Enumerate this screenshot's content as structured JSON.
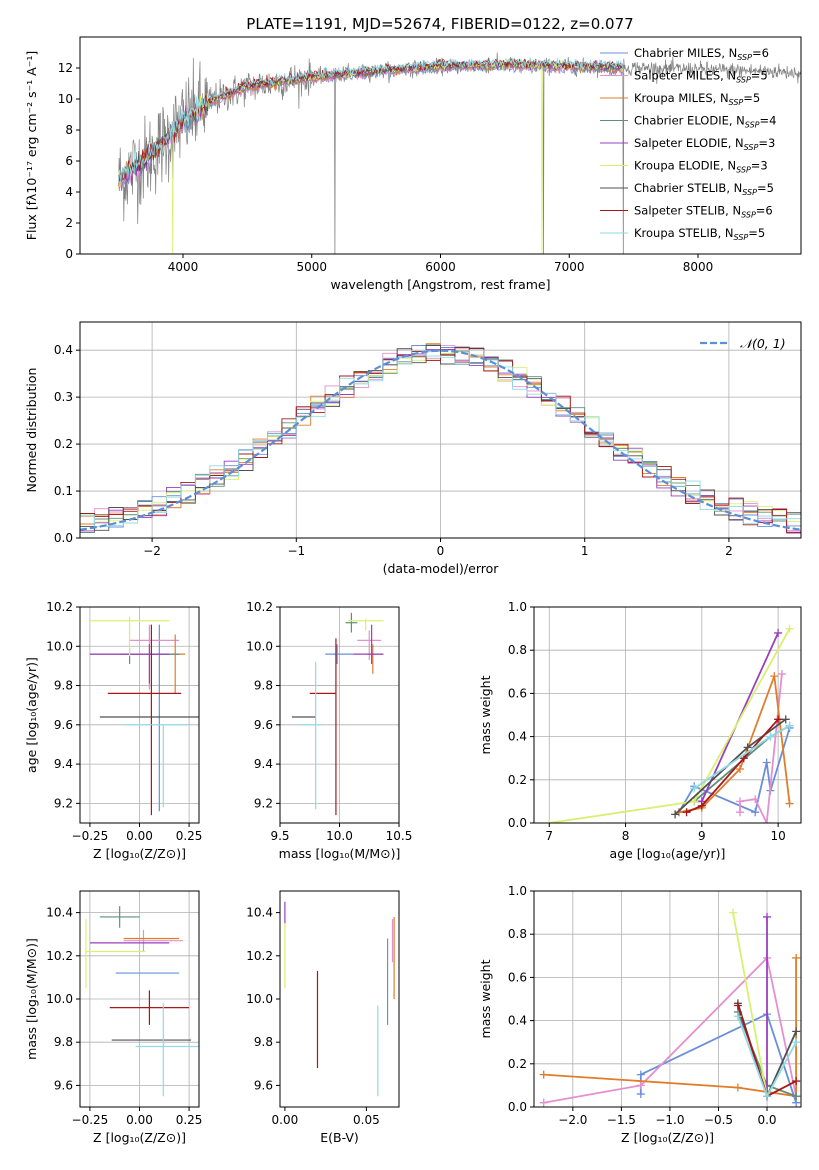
{
  "title": "PLATE=1191, MJD=52674, FIBERID=0122, z=0.077",
  "colors": {
    "chabrier_miles": "#6a8fd8",
    "salpeter_miles": "#e48fd0",
    "kroupa_miles": "#e07d2a",
    "chabrier_elodie": "#5f8f7a",
    "salpeter_elodie": "#9a3fbf",
    "kroupa_elodie": "#d8f070",
    "chabrier_stelib": "#505050",
    "salpeter_stelib": "#a81818",
    "kroupa_stelib": "#8fdae6",
    "data": "#808080",
    "normal": "#5b8fd8"
  },
  "legend": [
    {
      "key": "chabrier_miles",
      "label": "Chabrier MILES, N",
      "sub": "SSP",
      "tail": "=6"
    },
    {
      "key": "salpeter_miles",
      "label": "Salpeter MILES, N",
      "sub": "SSP",
      "tail": "=5"
    },
    {
      "key": "kroupa_miles",
      "label": "Kroupa MILES, N",
      "sub": "SSP",
      "tail": "=5"
    },
    {
      "key": "chabrier_elodie",
      "label": "Chabrier ELODIE, N",
      "sub": "SSP",
      "tail": "=4"
    },
    {
      "key": "salpeter_elodie",
      "label": "Salpeter ELODIE, N",
      "sub": "SSP",
      "tail": "=3"
    },
    {
      "key": "kroupa_elodie",
      "label": "Kroupa ELODIE, N",
      "sub": "SSP",
      "tail": "=3"
    },
    {
      "key": "chabrier_stelib",
      "label": "Chabrier STELIB, N",
      "sub": "SSP",
      "tail": "=5"
    },
    {
      "key": "salpeter_stelib",
      "label": "Salpeter STELIB, N",
      "sub": "SSP",
      "tail": "=6"
    },
    {
      "key": "kroupa_stelib",
      "label": "Kroupa STELIB, N",
      "sub": "SSP",
      "tail": "=5"
    }
  ],
  "chart_data": [
    {
      "id": "spectrum",
      "type": "line",
      "xlabel": "wavelength [Angstrom, rest frame]",
      "ylabel": "Flux [fλ10⁻¹⁷ erg cm⁻² s⁻¹ A⁻¹]",
      "xlim": [
        3200,
        8800
      ],
      "ylim": [
        0,
        14
      ],
      "xticks": [
        4000,
        5000,
        6000,
        7000,
        8000
      ],
      "yticks": [
        0,
        2,
        4,
        6,
        8,
        10,
        12
      ],
      "data_range": [
        3500,
        8800
      ],
      "model_range": [
        3500,
        7420
      ],
      "continuum": [
        [
          3500,
          4.8
        ],
        [
          3700,
          6.0
        ],
        [
          3900,
          7.6
        ],
        [
          4000,
          8.6
        ],
        [
          4200,
          9.8
        ],
        [
          4500,
          10.8
        ],
        [
          5000,
          11.4
        ],
        [
          5500,
          11.8
        ],
        [
          6000,
          12.1
        ],
        [
          6500,
          12.2
        ],
        [
          7000,
          12.1
        ],
        [
          7500,
          12.0
        ],
        [
          8000,
          11.9
        ],
        [
          8500,
          11.8
        ],
        [
          8800,
          11.7
        ]
      ],
      "grid": false
    },
    {
      "id": "residuals",
      "type": "histogram",
      "xlabel": "(data-model)/error",
      "ylabel": "Normed distribution",
      "xlim": [
        -2.5,
        2.5
      ],
      "ylim": [
        0,
        0.46
      ],
      "xticks": [
        -2,
        -1,
        0,
        1,
        2
      ],
      "yticks": [
        0.0,
        0.1,
        0.2,
        0.3,
        0.4
      ],
      "bin_width": 0.1,
      "legend_label": "𝒩(0, 1)",
      "grid": true
    },
    {
      "id": "age_vs_Z",
      "type": "errorbar",
      "xlabel": "Z [log₁₀(Z/Z⊙)]",
      "ylabel": "age  [log₁₀(age/yr)]",
      "xlim": [
        -0.3,
        0.3
      ],
      "ylim": [
        9.1,
        10.2
      ],
      "xticks": [
        -0.25,
        0.0,
        0.25
      ],
      "yticks": [
        9.2,
        9.4,
        9.6,
        9.8,
        10.0,
        10.2
      ],
      "points": [
        {
          "key": "chabrier_miles",
          "x": 0.1,
          "xerr": [
            0.2,
            0.1
          ],
          "y": 9.96,
          "yerr": [
            0.8,
            0.15
          ]
        },
        {
          "key": "salpeter_miles",
          "x": 0.05,
          "xerr": [
            0.1,
            0.15
          ],
          "y": 10.03,
          "yerr": [
            0.25,
            0.08
          ]
        },
        {
          "key": "kroupa_miles",
          "x": 0.18,
          "xerr": [
            0.28,
            0.05
          ],
          "y": 9.96,
          "yerr": [
            0.2,
            0.1
          ]
        },
        {
          "key": "chabrier_elodie",
          "x": -0.05,
          "xerr": [
            0.2,
            0.25
          ],
          "y": 9.96,
          "yerr": [
            0.05,
            0.03
          ]
        },
        {
          "key": "salpeter_elodie",
          "x": 0.05,
          "xerr": [
            0.3,
            0.1
          ],
          "y": 9.96,
          "yerr": [
            0.15,
            0.05
          ]
        },
        {
          "key": "kroupa_elodie",
          "x": -0.05,
          "xerr": [
            0.2,
            0.2
          ],
          "y": 10.13,
          "yerr": [
            0.18,
            0.02
          ]
        },
        {
          "key": "chabrier_stelib",
          "x": 0.0,
          "xerr": [
            0.2,
            0.3
          ],
          "y": 9.64,
          "yerr": [
            0.0,
            0.0
          ]
        },
        {
          "key": "salpeter_stelib",
          "x": 0.06,
          "xerr": [
            0.22,
            0.15
          ],
          "y": 9.76,
          "yerr": [
            0.62,
            0.35
          ]
        },
        {
          "key": "kroupa_stelib",
          "x": 0.12,
          "xerr": [
            0.2,
            0.12
          ],
          "y": 9.6,
          "yerr": [
            0.42,
            0.0
          ]
        }
      ],
      "grid": true
    },
    {
      "id": "age_vs_mass",
      "type": "errorbar",
      "xlabel": "mass [log₁₀(M/M⊙)]",
      "ylabel": "",
      "xlim": [
        9.5,
        10.5
      ],
      "ylim": [
        9.1,
        10.2
      ],
      "xticks": [
        9.5,
        10.0,
        10.5
      ],
      "yticks": [
        9.2,
        9.4,
        9.6,
        9.8,
        10.0,
        10.2
      ],
      "points": [
        {
          "key": "chabrier_miles",
          "x": 9.98,
          "xerr": [
            0.1,
            0.15
          ],
          "y": 9.96,
          "yerr": [
            0.05,
            0.05
          ]
        },
        {
          "key": "salpeter_miles",
          "x": 10.25,
          "xerr": [
            0.1,
            0.1
          ],
          "y": 10.03,
          "yerr": [
            0.1,
            0.05
          ]
        },
        {
          "key": "kroupa_miles",
          "x": 10.28,
          "xerr": [
            0.05,
            0.08
          ],
          "y": 9.96,
          "yerr": [
            0.1,
            0.05
          ]
        },
        {
          "key": "chabrier_elodie",
          "x": 10.1,
          "xerr": [
            0.05,
            0.05
          ],
          "y": 10.12,
          "yerr": [
            0.05,
            0.05
          ]
        },
        {
          "key": "salpeter_elodie",
          "x": 10.27,
          "xerr": [
            0.15,
            0.1
          ],
          "y": 9.96,
          "yerr": [
            0.05,
            0.15
          ]
        },
        {
          "key": "kroupa_elodie",
          "x": 10.22,
          "xerr": [
            0.15,
            0.15
          ],
          "y": 10.13,
          "yerr": [
            0.05,
            0.01
          ]
        },
        {
          "key": "chabrier_stelib",
          "x": 9.8,
          "xerr": [
            0.2,
            0.0
          ],
          "y": 9.64,
          "yerr": [
            0.0,
            0.0
          ]
        },
        {
          "key": "salpeter_stelib",
          "x": 9.97,
          "xerr": [
            0.22,
            0.0
          ],
          "y": 9.76,
          "yerr": [
            0.62,
            0.28
          ]
        },
        {
          "key": "kroupa_stelib",
          "x": 9.8,
          "xerr": [
            0.15,
            0.05
          ],
          "y": 9.6,
          "yerr": [
            0.43,
            0.32
          ]
        }
      ],
      "grid": true
    },
    {
      "id": "mass_weight_vs_age",
      "type": "line",
      "xlabel": "age  [log₁₀(age/yr)]",
      "ylabel": "mass weight",
      "xlim": [
        6.8,
        10.3
      ],
      "ylim": [
        0,
        1.0
      ],
      "xticks": [
        7,
        8,
        9,
        10
      ],
      "yticks": [
        0.0,
        0.2,
        0.4,
        0.6,
        0.8,
        1.0
      ],
      "series": [
        {
          "key": "chabrier_miles",
          "points": [
            [
              8.7,
              0.05
            ],
            [
              8.9,
              0.17
            ],
            [
              9.7,
              0.05
            ],
            [
              9.85,
              0.28
            ],
            [
              9.9,
              0.15
            ],
            [
              10.15,
              0.44
            ]
          ]
        },
        {
          "key": "salpeter_miles",
          "points": [
            [
              9.5,
              0.05
            ],
            [
              9.5,
              0.1
            ],
            [
              9.7,
              0.11
            ],
            [
              9.85,
              0.0
            ],
            [
              10.05,
              0.69
            ]
          ]
        },
        {
          "key": "kroupa_miles",
          "points": [
            [
              8.7,
              0.05
            ],
            [
              9.0,
              0.07
            ],
            [
              9.5,
              0.25
            ],
            [
              9.95,
              0.68
            ],
            [
              10.15,
              0.09
            ]
          ]
        },
        {
          "key": "chabrier_elodie",
          "points": [
            [
              8.9,
              0.1
            ],
            [
              9.9,
              0.4
            ],
            [
              10.15,
              0.45
            ]
          ]
        },
        {
          "key": "salpeter_elodie",
          "points": [
            [
              8.9,
              0.1
            ],
            [
              9.0,
              0.1
            ],
            [
              10.0,
              0.88
            ]
          ]
        },
        {
          "key": "kroupa_elodie",
          "points": [
            [
              7.0,
              0.0
            ],
            [
              8.9,
              0.1
            ],
            [
              10.15,
              0.9
            ]
          ]
        },
        {
          "key": "chabrier_stelib",
          "points": [
            [
              8.65,
              0.04
            ],
            [
              9.6,
              0.35
            ],
            [
              10.1,
              0.48
            ]
          ]
        },
        {
          "key": "salpeter_stelib",
          "points": [
            [
              8.8,
              0.05
            ],
            [
              9.0,
              0.08
            ],
            [
              9.55,
              0.3
            ],
            [
              10.0,
              0.48
            ]
          ]
        },
        {
          "key": "kroupa_stelib",
          "points": [
            [
              8.9,
              0.16
            ],
            [
              9.9,
              0.4
            ],
            [
              10.15,
              0.45
            ]
          ]
        }
      ],
      "grid": true
    },
    {
      "id": "mass_vs_Z",
      "type": "errorbar",
      "xlabel": "Z [log₁₀(Z/Z⊙)]",
      "ylabel": "mass [log₁₀(M/M⊙)]",
      "xlim": [
        -0.3,
        0.3
      ],
      "ylim": [
        9.5,
        10.5
      ],
      "xticks": [
        -0.25,
        0.0,
        0.25
      ],
      "yticks": [
        9.6,
        9.8,
        10.0,
        10.2,
        10.4
      ],
      "points": [
        {
          "key": "chabrier_miles",
          "x": 0.1,
          "xerr": [
            0.22,
            0.1
          ],
          "y": 10.12,
          "yerr": [
            0.0,
            0.0
          ]
        },
        {
          "key": "salpeter_miles",
          "x": 0.02,
          "xerr": [
            0.1,
            0.2
          ],
          "y": 10.27,
          "yerr": [
            0.05,
            0.05
          ]
        },
        {
          "key": "kroupa_miles",
          "x": 0.1,
          "xerr": [
            0.18,
            0.1
          ],
          "y": 10.28,
          "yerr": [
            0.0,
            0.0
          ]
        },
        {
          "key": "chabrier_elodie",
          "x": -0.1,
          "xerr": [
            0.1,
            0.1
          ],
          "y": 10.38,
          "yerr": [
            0.05,
            0.05
          ]
        },
        {
          "key": "salpeter_elodie",
          "x": -0.05,
          "xerr": [
            0.2,
            0.2
          ],
          "y": 10.26,
          "yerr": [
            0.0,
            0.0
          ]
        },
        {
          "key": "kroupa_elodie",
          "x": -0.27,
          "xerr": [
            0.0,
            0.3
          ],
          "y": 10.22,
          "yerr": [
            0.17,
            0.15
          ]
        },
        {
          "key": "chabrier_stelib",
          "x": 0.06,
          "xerr": [
            0.2,
            0.2
          ],
          "y": 9.81,
          "yerr": [
            0.0,
            0.0
          ]
        },
        {
          "key": "salpeter_stelib",
          "x": 0.05,
          "xerr": [
            0.2,
            0.2
          ],
          "y": 9.96,
          "yerr": [
            0.08,
            0.08
          ]
        },
        {
          "key": "kroupa_stelib",
          "x": 0.12,
          "xerr": [
            0.14,
            0.18
          ],
          "y": 9.78,
          "yerr": [
            0.23,
            0.2
          ]
        }
      ],
      "grid": true
    },
    {
      "id": "mass_vs_ebv",
      "type": "errorbar",
      "xlabel": "E(B-V)",
      "ylabel": "",
      "xlim": [
        -0.003,
        0.07
      ],
      "ylim": [
        9.5,
        10.5
      ],
      "xticks": [
        0.0,
        0.05
      ],
      "yticks": [
        9.6,
        9.8,
        10.0,
        10.2,
        10.4
      ],
      "points": [
        {
          "key": "chabrier_miles",
          "x": 0.063,
          "yerr": [
            0.24,
            0.16
          ],
          "y": 10.12
        },
        {
          "key": "salpeter_miles",
          "x": 0.066,
          "yerr": [
            0.1,
            0.1
          ],
          "y": 10.27
        },
        {
          "key": "kroupa_miles",
          "x": 0.067,
          "yerr": [
            0.28,
            0.1
          ],
          "y": 10.28
        },
        {
          "key": "salpeter_elodie",
          "x": 0.0,
          "yerr": [
            0.05,
            0.05
          ],
          "y": 10.4
        },
        {
          "key": "kroupa_elodie",
          "x": 0.0,
          "yerr": [
            0.2,
            0.1
          ],
          "y": 10.25
        },
        {
          "key": "salpeter_stelib",
          "x": 0.02,
          "yerr": [
            0.28,
            0.17
          ],
          "y": 9.96
        },
        {
          "key": "kroupa_stelib",
          "x": 0.057,
          "yerr": [
            0.23,
            0.19
          ],
          "y": 9.78
        }
      ],
      "grid": false
    },
    {
      "id": "mass_weight_vs_Z",
      "type": "line",
      "xlabel": "Z [log₁₀(Z/Z⊙)]",
      "ylabel": "mass weight",
      "xlim": [
        -2.4,
        0.35
      ],
      "ylim": [
        0,
        1.0
      ],
      "xticks": [
        -2.0,
        -1.5,
        -1.0,
        -0.5,
        0.0
      ],
      "yticks": [
        0.0,
        0.2,
        0.4,
        0.6,
        0.8,
        1.0
      ],
      "series": [
        {
          "key": "chabrier_miles",
          "points": [
            [
              -1.3,
              0.06
            ],
            [
              -1.3,
              0.15
            ],
            [
              0.0,
              0.43
            ],
            [
              0.3,
              0.02
            ]
          ]
        },
        {
          "key": "salpeter_miles",
          "points": [
            [
              -2.3,
              0.02
            ],
            [
              -1.3,
              0.1
            ],
            [
              0.0,
              0.69
            ],
            [
              0.3,
              0.05
            ]
          ]
        },
        {
          "key": "kroupa_miles",
          "points": [
            [
              -2.3,
              0.15
            ],
            [
              -0.3,
              0.09
            ],
            [
              0.3,
              0.05
            ],
            [
              0.3,
              0.69
            ]
          ]
        },
        {
          "key": "chabrier_elodie",
          "points": [
            [
              -0.3,
              0.44
            ],
            [
              0.0,
              0.1
            ],
            [
              0.3,
              0.05
            ]
          ]
        },
        {
          "key": "salpeter_elodie",
          "points": [
            [
              0.0,
              0.88
            ],
            [
              0.0,
              0.05
            ]
          ]
        },
        {
          "key": "kroupa_elodie",
          "points": [
            [
              -0.35,
              0.9
            ],
            [
              0.0,
              0.05
            ]
          ]
        },
        {
          "key": "chabrier_stelib",
          "points": [
            [
              -0.3,
              0.48
            ],
            [
              0.0,
              0.05
            ],
            [
              0.3,
              0.35
            ]
          ]
        },
        {
          "key": "salpeter_stelib",
          "points": [
            [
              -0.3,
              0.47
            ],
            [
              0.0,
              0.05
            ],
            [
              0.3,
              0.12
            ]
          ]
        },
        {
          "key": "kroupa_stelib",
          "points": [
            [
              -0.3,
              0.42
            ],
            [
              0.0,
              0.05
            ],
            [
              0.3,
              0.3
            ]
          ]
        }
      ],
      "grid": true
    }
  ]
}
